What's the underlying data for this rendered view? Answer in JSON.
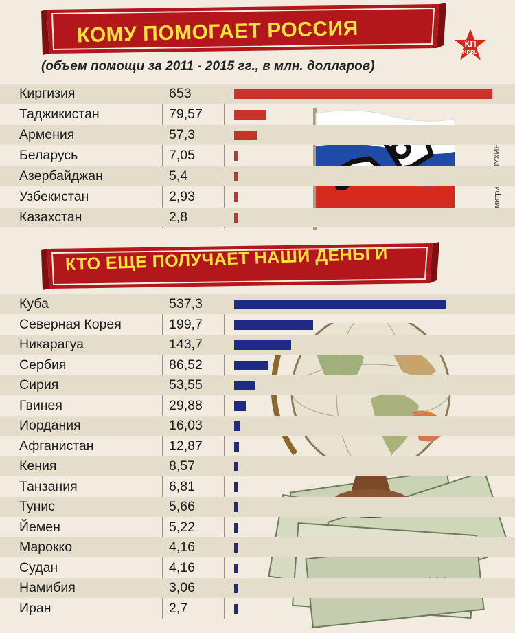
{
  "title1": "КОМУ ПОМОГАЕТ РОССИЯ",
  "subtitle": "(объем помощи за 2011 - 2015 гг., в млн. долларов)",
  "title2": "КТО ЕЩЕ ПОЛУЧАЕТ НАШИ ДЕНЬГИ",
  "logo_text": "КП",
  "logo_sub": "KP.RU",
  "credit": "Дмитрий ПОЛУХИН",
  "colors": {
    "banner": "#b3161b",
    "title_text": "#ffe23a",
    "bar_red": "#c8322a",
    "bar_blue": "#1f2a86"
  },
  "chart_data": [
    {
      "type": "bar",
      "title": "КОМУ ПОМОГАЕТ РОССИЯ",
      "subtitle": "(объем помощи за 2011 - 2015 гг., в млн. долларов)",
      "orientation": "horizontal",
      "categories": [
        "Киргизия",
        "Таджикистан",
        "Армения",
        "Беларусь",
        "Азербайджан",
        "Узбекистан",
        "Казахстан"
      ],
      "value_labels": [
        "653",
        "79,57",
        "57,3",
        "7,05",
        "5,4",
        "2,93",
        "2,8"
      ],
      "values": [
        653,
        79.57,
        57.3,
        7.05,
        5.4,
        2.93,
        2.8
      ],
      "xlim": [
        0,
        653
      ]
    },
    {
      "type": "bar",
      "title": "КТО ЕЩЕ ПОЛУЧАЕТ НАШИ ДЕНЬГИ",
      "orientation": "horizontal",
      "categories": [
        "Куба",
        "Северная Корея",
        "Никарагуа",
        "Сербия",
        "Сирия",
        "Гвинея",
        "Иордания",
        "Афганистан",
        "Кения",
        "Танзания",
        "Тунис",
        "Йемен",
        "Марокко",
        "Судан",
        "Намибия",
        "Иран"
      ],
      "value_labels": [
        "537,3",
        "199,7",
        "143,7",
        "86,52",
        "53,55",
        "29,88",
        "16,03",
        "12,87",
        "8,57",
        "6,81",
        "5,66",
        "5,22",
        "4,16",
        "4,16",
        "3,06",
        "2,7"
      ],
      "values": [
        537.3,
        199.7,
        143.7,
        86.52,
        53.55,
        29.88,
        16.03,
        12.87,
        8.57,
        6.81,
        5.66,
        5.22,
        4.16,
        4.16,
        3.06,
        2.7
      ],
      "xlim": [
        0,
        653
      ]
    }
  ]
}
